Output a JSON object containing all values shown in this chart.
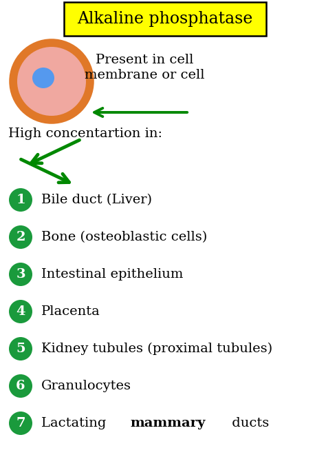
{
  "title": "Alkaline phosphatase",
  "title_bg": "#FFFF00",
  "title_border": "#000000",
  "cell_membrane_color": "#E07828",
  "cell_body_color": "#F0A8A0",
  "cell_nucleus_color": "#5599EE",
  "arrow_color": "#008800",
  "present_text_line1": "Present in cell",
  "present_text_line2": "membrane or cell",
  "high_conc_text": "High concentartion in:",
  "items": [
    {
      "num": "1",
      "text": "Bile duct (Liver)"
    },
    {
      "num": "2",
      "text": "Bone (osteoblastic cells)"
    },
    {
      "num": "3",
      "text": "Intestinal epithelium"
    },
    {
      "num": "4",
      "text": "Placenta"
    },
    {
      "num": "5",
      "text": "Kidney tubules (proximal tubules)"
    },
    {
      "num": "6",
      "text": "Granulocytes"
    },
    {
      "num": "7",
      "text_parts": [
        {
          "text": "Lactating ",
          "bold": false
        },
        {
          "text": "mammary",
          "bold": true
        },
        {
          "text": " ducts",
          "bold": false
        }
      ]
    }
  ],
  "circle_color": "#1A9A3C",
  "circle_text_color": "#FFFFFF",
  "background_color": "#FFFFFF",
  "font_size_items": 14,
  "font_size_title": 17,
  "font_size_high": 14,
  "font_size_present": 14
}
